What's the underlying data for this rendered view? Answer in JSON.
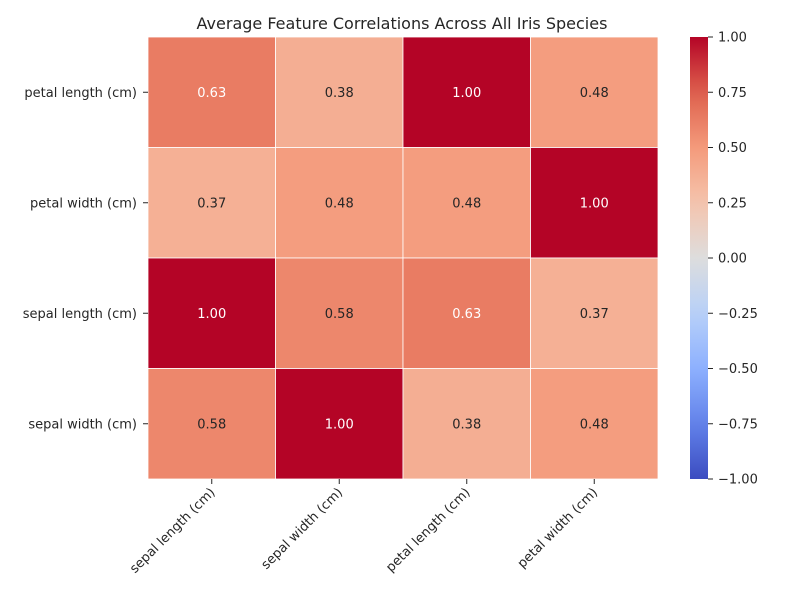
{
  "chart_data": {
    "type": "heatmap",
    "title": "Average Feature Correlations Across All Iris Species",
    "rows": [
      "petal length (cm)",
      "petal width (cm)",
      "sepal length (cm)",
      "sepal width (cm)"
    ],
    "columns": [
      "sepal length (cm)",
      "sepal width (cm)",
      "petal length (cm)",
      "petal width (cm)"
    ],
    "values": [
      [
        0.63,
        0.38,
        1.0,
        0.48
      ],
      [
        0.37,
        0.48,
        0.48,
        1.0
      ],
      [
        1.0,
        0.58,
        0.63,
        0.37
      ],
      [
        0.58,
        1.0,
        0.38,
        0.48
      ]
    ],
    "value_format": "0.00",
    "colormap": "coolwarm",
    "vmin": -1.0,
    "vmax": 1.0,
    "colorbar_ticks": [
      "1.00",
      "0.75",
      "0.50",
      "0.25",
      "0.00",
      "−0.25",
      "−0.50",
      "−0.75",
      "−1.00"
    ],
    "colorbar_tick_values": [
      1.0,
      0.75,
      0.5,
      0.25,
      0.0,
      -0.25,
      -0.5,
      -0.75,
      -1.0
    ],
    "cell_border_color": "#ffffff",
    "legend": "colorbar-right"
  }
}
